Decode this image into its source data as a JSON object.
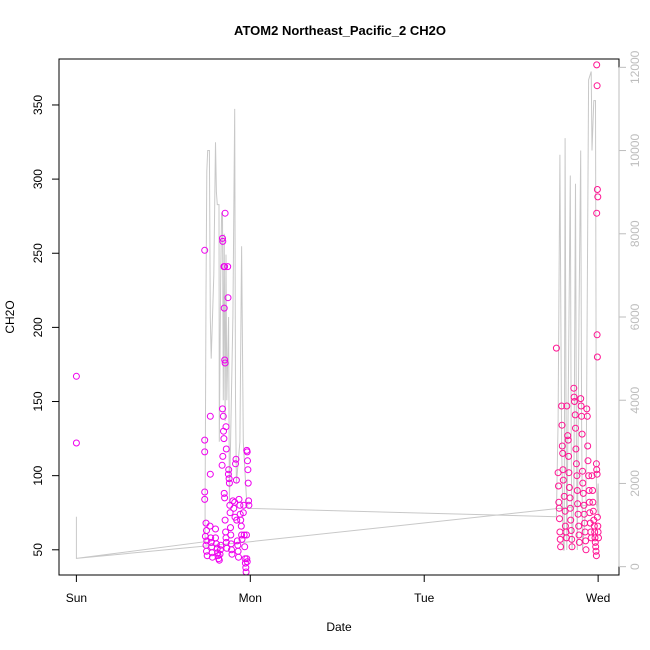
{
  "chart_data": {
    "type": "scatter",
    "title": "ATOM2 Northeast_Pacific_2 CH2O",
    "xlabel": "Date",
    "ylabel": "CH2O",
    "y2label": "",
    "x_ticks": [
      {
        "t": 0,
        "label": "Sun"
      },
      {
        "t": 1,
        "label": "Mon"
      },
      {
        "t": 2,
        "label": "Tue"
      },
      {
        "t": 3,
        "label": "Wed"
      }
    ],
    "xlim": [
      -0.1,
      3.12
    ],
    "y_ticks": [
      50,
      100,
      150,
      200,
      250,
      300,
      350
    ],
    "ylim": [
      33,
      381
    ],
    "y2_ticks": [
      0,
      2000,
      4000,
      6000,
      8000,
      10000,
      12000
    ],
    "y2lim": [
      -200,
      12200
    ],
    "grid": false,
    "point_color": "#ee00ee",
    "point_color_late": "#ff1493",
    "line_color": "#c8c8c8",
    "points": [
      [
        0.0,
        167
      ],
      [
        0.0,
        122
      ],
      [
        0.738,
        252
      ],
      [
        0.738,
        124
      ],
      [
        0.738,
        116
      ],
      [
        0.738,
        89
      ],
      [
        0.738,
        84
      ],
      [
        0.745,
        68
      ],
      [
        0.748,
        63
      ],
      [
        0.742,
        59
      ],
      [
        0.75,
        56
      ],
      [
        0.745,
        53
      ],
      [
        0.748,
        49
      ],
      [
        0.752,
        46
      ],
      [
        0.77,
        140
      ],
      [
        0.77,
        101
      ],
      [
        0.768,
        66
      ],
      [
        0.772,
        58
      ],
      [
        0.775,
        55
      ],
      [
        0.778,
        52
      ],
      [
        0.78,
        48
      ],
      [
        0.782,
        45
      ],
      [
        0.8,
        64
      ],
      [
        0.8,
        58
      ],
      [
        0.805,
        54
      ],
      [
        0.81,
        51
      ],
      [
        0.812,
        48
      ],
      [
        0.815,
        46
      ],
      [
        0.818,
        44
      ],
      [
        0.822,
        43
      ],
      [
        0.826,
        47
      ],
      [
        0.828,
        50
      ],
      [
        0.83,
        53
      ],
      [
        0.84,
        145
      ],
      [
        0.845,
        140
      ],
      [
        0.842,
        113
      ],
      [
        0.838,
        107
      ],
      [
        0.846,
        130
      ],
      [
        0.848,
        125
      ],
      [
        0.85,
        88
      ],
      [
        0.852,
        85
      ],
      [
        0.855,
        70
      ],
      [
        0.858,
        62
      ],
      [
        0.86,
        58
      ],
      [
        0.862,
        55
      ],
      [
        0.865,
        51
      ],
      [
        0.84,
        260
      ],
      [
        0.842,
        258
      ],
      [
        0.848,
        241
      ],
      [
        0.852,
        241
      ],
      [
        0.855,
        277
      ],
      [
        0.85,
        213
      ],
      [
        0.853,
        178
      ],
      [
        0.855,
        176
      ],
      [
        0.86,
        133
      ],
      [
        0.862,
        118
      ],
      [
        0.87,
        241
      ],
      [
        0.872,
        220
      ],
      [
        0.874,
        101
      ],
      [
        0.876,
        104
      ],
      [
        0.878,
        98
      ],
      [
        0.88,
        95
      ],
      [
        0.882,
        80
      ],
      [
        0.884,
        75
      ],
      [
        0.886,
        65
      ],
      [
        0.888,
        60
      ],
      [
        0.89,
        54
      ],
      [
        0.892,
        50
      ],
      [
        0.895,
        47
      ],
      [
        0.9,
        83
      ],
      [
        0.905,
        78
      ],
      [
        0.91,
        82
      ],
      [
        0.912,
        72
      ],
      [
        0.915,
        108
      ],
      [
        0.918,
        111
      ],
      [
        0.92,
        97
      ],
      [
        0.922,
        70
      ],
      [
        0.925,
        56
      ],
      [
        0.928,
        53
      ],
      [
        0.93,
        49
      ],
      [
        0.932,
        45
      ],
      [
        0.935,
        84
      ],
      [
        0.94,
        80
      ],
      [
        0.942,
        74
      ],
      [
        0.945,
        70
      ],
      [
        0.948,
        66
      ],
      [
        0.95,
        60
      ],
      [
        0.952,
        57
      ],
      [
        0.96,
        75
      ],
      [
        0.962,
        80
      ],
      [
        0.965,
        60
      ],
      [
        0.968,
        52
      ],
      [
        0.97,
        44
      ],
      [
        0.972,
        41
      ],
      [
        0.974,
        38
      ],
      [
        0.976,
        35
      ],
      [
        0.98,
        117
      ],
      [
        0.982,
        116
      ],
      [
        0.984,
        110
      ],
      [
        0.986,
        104
      ],
      [
        0.988,
        95
      ],
      [
        0.99,
        83
      ],
      [
        0.992,
        80
      ],
      [
        0.978,
        60
      ],
      [
        0.98,
        44
      ],
      [
        0.982,
        42
      ],
      [
        2.76,
        186
      ],
      [
        2.77,
        102
      ],
      [
        2.772,
        93
      ],
      [
        2.774,
        82
      ],
      [
        2.776,
        78
      ],
      [
        2.778,
        71
      ],
      [
        2.78,
        62
      ],
      [
        2.782,
        57
      ],
      [
        2.784,
        52
      ],
      [
        2.79,
        147
      ],
      [
        2.792,
        134
      ],
      [
        2.794,
        120
      ],
      [
        2.796,
        115
      ],
      [
        2.798,
        104
      ],
      [
        2.8,
        97
      ],
      [
        2.805,
        86
      ],
      [
        2.81,
        76
      ],
      [
        2.812,
        66
      ],
      [
        2.815,
        62
      ],
      [
        2.818,
        58
      ],
      [
        2.82,
        147
      ],
      [
        2.825,
        127
      ],
      [
        2.828,
        124
      ],
      [
        2.83,
        113
      ],
      [
        2.832,
        102
      ],
      [
        2.835,
        92
      ],
      [
        2.838,
        85
      ],
      [
        2.84,
        78
      ],
      [
        2.842,
        70
      ],
      [
        2.845,
        63
      ],
      [
        2.848,
        57
      ],
      [
        2.85,
        52
      ],
      [
        2.86,
        159
      ],
      [
        2.862,
        153
      ],
      [
        2.864,
        150
      ],
      [
        2.868,
        141
      ],
      [
        2.87,
        132
      ],
      [
        2.872,
        118
      ],
      [
        2.875,
        108
      ],
      [
        2.878,
        100
      ],
      [
        2.88,
        90
      ],
      [
        2.882,
        81
      ],
      [
        2.885,
        74
      ],
      [
        2.888,
        66
      ],
      [
        2.89,
        60
      ],
      [
        2.892,
        55
      ],
      [
        2.9,
        152
      ],
      [
        2.902,
        147
      ],
      [
        2.905,
        140
      ],
      [
        2.908,
        128
      ],
      [
        2.91,
        103
      ],
      [
        2.912,
        95
      ],
      [
        2.915,
        88
      ],
      [
        2.918,
        80
      ],
      [
        2.92,
        74
      ],
      [
        2.922,
        68
      ],
      [
        2.925,
        62
      ],
      [
        2.928,
        56
      ],
      [
        2.93,
        50
      ],
      [
        2.935,
        145
      ],
      [
        2.938,
        140
      ],
      [
        2.94,
        120
      ],
      [
        2.942,
        110
      ],
      [
        2.945,
        100
      ],
      [
        2.948,
        90
      ],
      [
        2.95,
        82
      ],
      [
        2.952,
        75
      ],
      [
        2.955,
        68
      ],
      [
        2.958,
        62
      ],
      [
        2.96,
        58
      ],
      [
        2.965,
        100
      ],
      [
        2.968,
        90
      ],
      [
        2.97,
        82
      ],
      [
        2.972,
        76
      ],
      [
        2.975,
        70
      ],
      [
        2.978,
        66
      ],
      [
        2.98,
        62
      ],
      [
        2.982,
        58
      ],
      [
        2.984,
        55
      ],
      [
        2.986,
        52
      ],
      [
        2.988,
        49
      ],
      [
        2.99,
        46
      ],
      [
        2.992,
        377
      ],
      [
        2.994,
        363
      ],
      [
        2.996,
        293
      ],
      [
        2.998,
        288
      ],
      [
        2.992,
        277
      ],
      [
        2.994,
        195
      ],
      [
        2.996,
        180
      ],
      [
        2.99,
        108
      ],
      [
        2.992,
        104
      ],
      [
        2.994,
        101
      ],
      [
        2.996,
        72
      ],
      [
        2.998,
        66
      ],
      [
        3.0,
        62
      ],
      [
        3.002,
        58
      ]
    ],
    "line": [
      [
        0.0,
        1200
      ],
      [
        0.0,
        200
      ],
      [
        0.74,
        600
      ],
      [
        0.74,
        1500
      ],
      [
        0.745,
        6500
      ],
      [
        0.75,
        9500
      ],
      [
        0.755,
        10000
      ],
      [
        0.765,
        10000
      ],
      [
        0.77,
        6000
      ],
      [
        0.775,
        5000
      ],
      [
        0.79,
        7000
      ],
      [
        0.8,
        10200
      ],
      [
        0.805,
        9000
      ],
      [
        0.81,
        8700
      ],
      [
        0.82,
        8700
      ],
      [
        0.822,
        3000
      ],
      [
        0.83,
        7000
      ],
      [
        0.835,
        8500
      ],
      [
        0.84,
        8500
      ],
      [
        0.845,
        4000
      ],
      [
        0.85,
        8000
      ],
      [
        0.855,
        3500
      ],
      [
        0.86,
        7500
      ],
      [
        0.865,
        4000
      ],
      [
        0.875,
        6000
      ],
      [
        0.88,
        1500
      ],
      [
        0.9,
        6000
      ],
      [
        0.91,
        11000
      ],
      [
        0.915,
        4000
      ],
      [
        0.92,
        2000
      ],
      [
        0.94,
        3000
      ],
      [
        0.95,
        7700
      ],
      [
        0.96,
        3000
      ],
      [
        0.98,
        1500
      ],
      [
        0.99,
        1400
      ],
      [
        2.76,
        1200
      ],
      [
        2.77,
        3500
      ],
      [
        2.78,
        9900
      ],
      [
        2.79,
        3000
      ],
      [
        2.8,
        400
      ],
      [
        2.805,
        400
      ],
      [
        2.81,
        10300
      ],
      [
        2.815,
        4000
      ],
      [
        2.82,
        400
      ],
      [
        2.83,
        5000
      ],
      [
        2.84,
        9400
      ],
      [
        2.845,
        3000
      ],
      [
        2.85,
        400
      ],
      [
        2.86,
        1500
      ],
      [
        2.87,
        9200
      ],
      [
        2.875,
        3000
      ],
      [
        2.88,
        400
      ],
      [
        2.89,
        6000
      ],
      [
        2.9,
        10000
      ],
      [
        2.905,
        3500
      ],
      [
        2.91,
        400
      ],
      [
        2.93,
        1500
      ],
      [
        2.945,
        11700
      ],
      [
        2.96,
        11900
      ],
      [
        2.965,
        10000
      ],
      [
        2.975,
        11200
      ],
      [
        2.985,
        11200
      ],
      [
        2.99,
        2000
      ],
      [
        2.995,
        1400
      ],
      [
        3.0,
        2000
      ],
      [
        3.005,
        1200
      ],
      [
        2.99,
        1500
      ],
      [
        1.0,
        600
      ],
      [
        0.0,
        200
      ]
    ]
  }
}
